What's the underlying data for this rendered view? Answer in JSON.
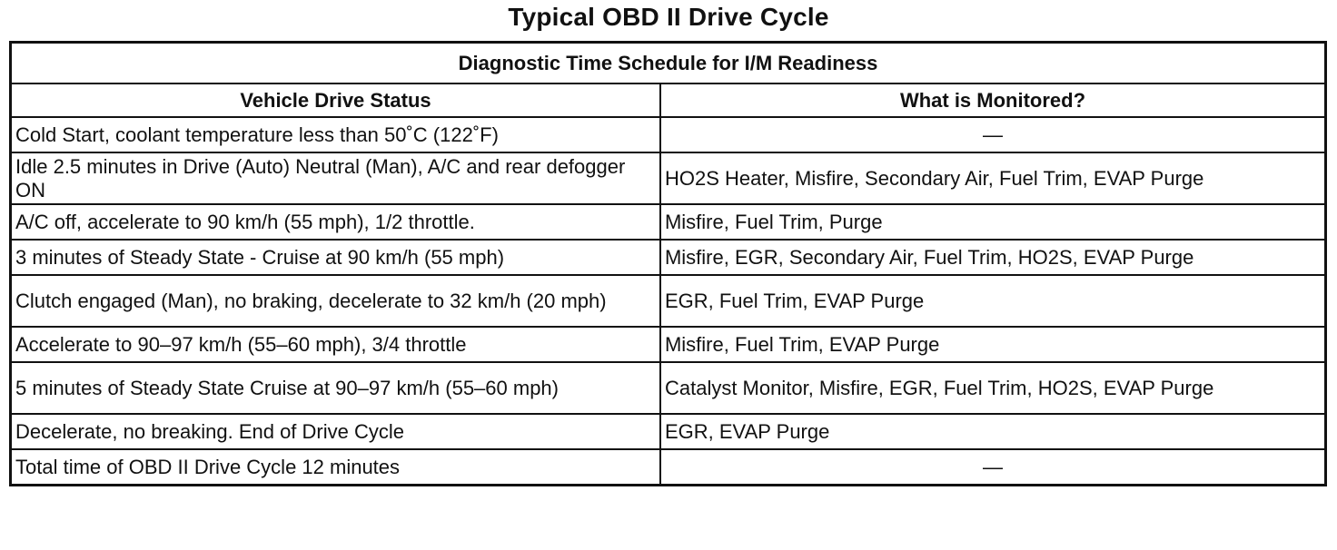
{
  "title": "Typical OBD II Drive Cycle",
  "table": {
    "caption": "Diagnostic Time Schedule for I/M Readiness",
    "headers": [
      "Vehicle Drive Status",
      "What is Monitored?"
    ],
    "rows": [
      {
        "status": "Cold Start, coolant temperature less than 50˚C (122˚F)",
        "monitored": "—"
      },
      {
        "status": "Idle 2.5 minutes in Drive (Auto) Neutral (Man), A/C and rear defogger ON",
        "monitored": "HO2S Heater, Misfire, Secondary Air, Fuel Trim, EVAP Purge"
      },
      {
        "status": "A/C off, accelerate to 90 km/h (55 mph), 1/2 throttle.",
        "monitored": "Misfire, Fuel Trim, Purge"
      },
      {
        "status": "3 minutes of Steady State - Cruise at 90 km/h (55 mph)",
        "monitored": "Misfire, EGR, Secondary Air, Fuel Trim, HO2S, EVAP Purge"
      },
      {
        "status": "Clutch engaged (Man), no braking, decelerate to 32 km/h (20 mph)",
        "monitored": "EGR, Fuel Trim, EVAP Purge"
      },
      {
        "status": "Accelerate to 90–97 km/h (55–60 mph), 3/4 throttle",
        "monitored": "Misfire, Fuel Trim, EVAP Purge"
      },
      {
        "status": "5 minutes of Steady State Cruise at 90–97 km/h (55–60 mph)",
        "monitored": "Catalyst Monitor, Misfire, EGR, Fuel Trim, HO2S, EVAP Purge"
      },
      {
        "status": "Decelerate, no breaking. End of Drive Cycle",
        "monitored": "EGR, EVAP Purge"
      },
      {
        "status": "Total time of OBD II Drive Cycle 12 minutes",
        "monitored": "—"
      }
    ]
  }
}
